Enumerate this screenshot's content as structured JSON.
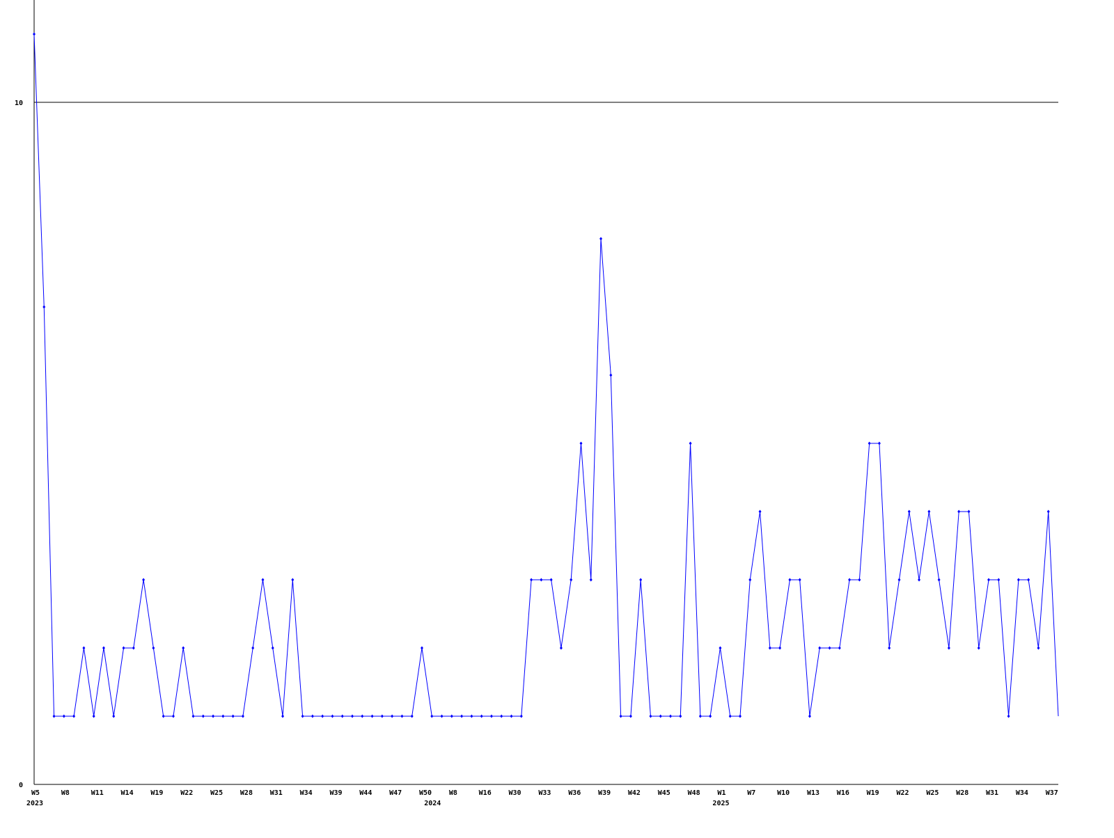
{
  "chart_data": {
    "type": "line",
    "title": "",
    "xlabel": "",
    "ylabel": "",
    "ylim": [
      0,
      11.5
    ],
    "y_ticks": [
      0,
      10
    ],
    "grid": "horizontal line at 10",
    "line_color": "#0000ff",
    "x_tick_labels": [
      "W5",
      "W8",
      "W11",
      "W14",
      "W19",
      "W22",
      "W25",
      "W28",
      "W31",
      "W34",
      "W39",
      "W44",
      "W47",
      "W50",
      "W8",
      "W16",
      "W30",
      "W33",
      "W36",
      "W39",
      "W42",
      "W45",
      "W48",
      "W1",
      "W7",
      "W10",
      "W13",
      "W16",
      "W19",
      "W22",
      "W25",
      "W28",
      "W31",
      "W34",
      "W37"
    ],
    "year_labels": [
      {
        "label": "2023",
        "index": 0
      },
      {
        "label": "2024",
        "index": 40
      },
      {
        "label": "2025",
        "index": 69
      }
    ],
    "values": [
      11,
      7,
      1,
      1,
      1,
      2,
      1,
      2,
      1,
      2,
      2,
      3,
      2,
      1,
      1,
      2,
      1,
      1,
      1,
      1,
      1,
      1,
      2,
      3,
      2,
      1,
      3,
      1,
      1,
      1,
      1,
      1,
      1,
      1,
      1,
      1,
      1,
      1,
      1,
      2,
      1,
      1,
      1,
      1,
      1,
      1,
      1,
      1,
      1,
      1,
      3,
      3,
      3,
      2,
      3,
      5,
      3,
      8,
      6,
      1,
      1,
      3,
      1,
      1,
      1,
      1,
      5,
      1,
      1,
      2,
      1,
      1,
      3,
      4,
      2,
      2,
      3,
      3,
      1,
      2,
      2,
      2,
      3,
      3,
      5,
      5,
      2,
      3,
      4,
      3,
      4,
      3,
      2,
      4,
      4,
      2,
      3,
      3,
      1,
      3,
      3,
      2,
      4,
      1
    ]
  }
}
